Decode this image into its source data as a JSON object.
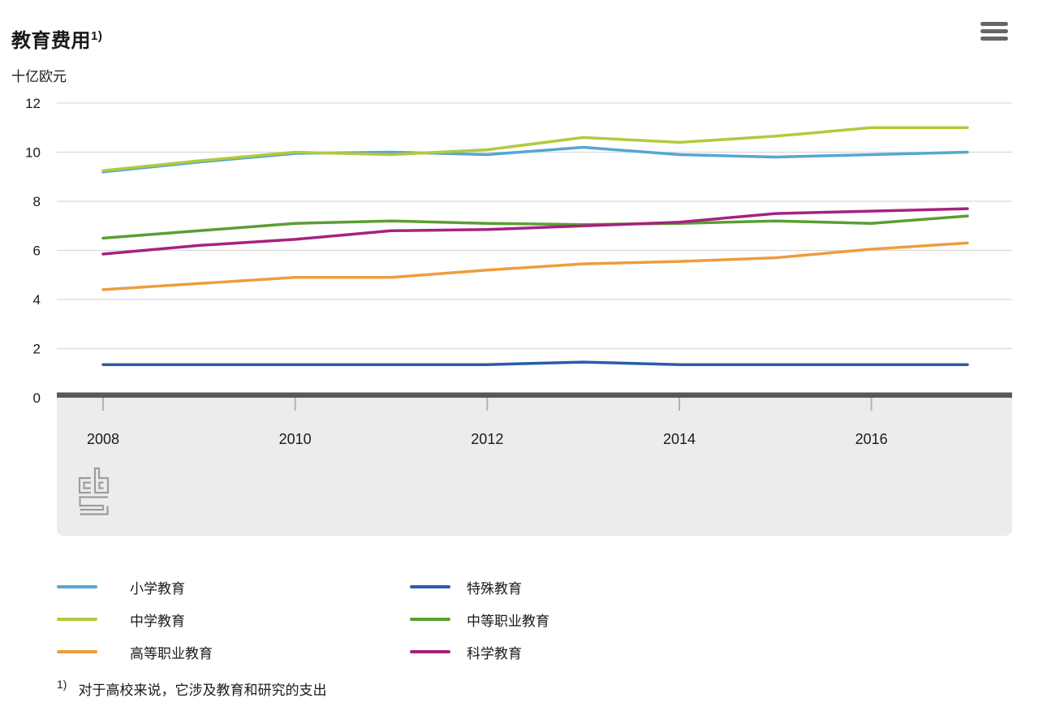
{
  "header": {
    "title": "教育费用",
    "footnote_marker": "1)",
    "unit_label": "十亿欧元"
  },
  "chart_data": {
    "type": "line",
    "title": "教育费用",
    "unit_label": "十亿欧元",
    "x": [
      2008,
      2009,
      2010,
      2011,
      2012,
      2013,
      2014,
      2015,
      2016,
      2017
    ],
    "x_tick_years": [
      2008,
      2010,
      2012,
      2014,
      2016
    ],
    "x_tick_labels": [
      "2008",
      "2010",
      "2012",
      "2014",
      "2016"
    ],
    "ylim": [
      0,
      12
    ],
    "y_ticks": [
      0,
      2,
      4,
      6,
      8,
      10,
      12
    ],
    "grid": true,
    "legend_position": "bottom",
    "series": [
      {
        "name": "小学教育",
        "color": "#54a7d5",
        "values": [
          9.2,
          9.6,
          9.95,
          10.0,
          9.9,
          10.2,
          9.9,
          9.8,
          9.9,
          10.0
        ]
      },
      {
        "name": "中学教育",
        "color": "#b2ca3b",
        "values": [
          9.25,
          9.65,
          10.0,
          9.9,
          10.1,
          10.6,
          10.4,
          10.65,
          11.0,
          11.0
        ]
      },
      {
        "name": "高等职业教育",
        "color": "#ee9d3d",
        "values": [
          4.4,
          4.65,
          4.9,
          4.9,
          5.2,
          5.45,
          5.55,
          5.7,
          6.05,
          6.3
        ]
      },
      {
        "name": "特殊教育",
        "color": "#2a5cab",
        "values": [
          1.35,
          1.35,
          1.35,
          1.35,
          1.35,
          1.45,
          1.35,
          1.35,
          1.35,
          1.35
        ]
      },
      {
        "name": "中等职业教育",
        "color": "#5b9e33",
        "values": [
          6.5,
          6.8,
          7.1,
          7.2,
          7.1,
          7.05,
          7.1,
          7.2,
          7.1,
          7.4
        ]
      },
      {
        "name": "科学教育",
        "color": "#a5237e",
        "values": [
          5.85,
          6.2,
          6.45,
          6.8,
          6.85,
          7.0,
          7.15,
          7.5,
          7.6,
          7.7
        ]
      }
    ],
    "legend_columns": [
      [
        "小学教育",
        "中学教育",
        "高等职业教育"
      ],
      [
        "特殊教育",
        "中等职业教育",
        "科学教育"
      ]
    ]
  },
  "footnote": {
    "marker": "1)",
    "text": "对于高校来说，它涉及教育和研究的支出"
  },
  "colors": {
    "grid": "#d9d9d9",
    "axis_bar": "#59595b",
    "tick": "#b3b3b3",
    "plot_band": "#ececec",
    "logo": "#9d9d9d",
    "menu_icon": "#666666",
    "text": "#1a1a1a"
  }
}
